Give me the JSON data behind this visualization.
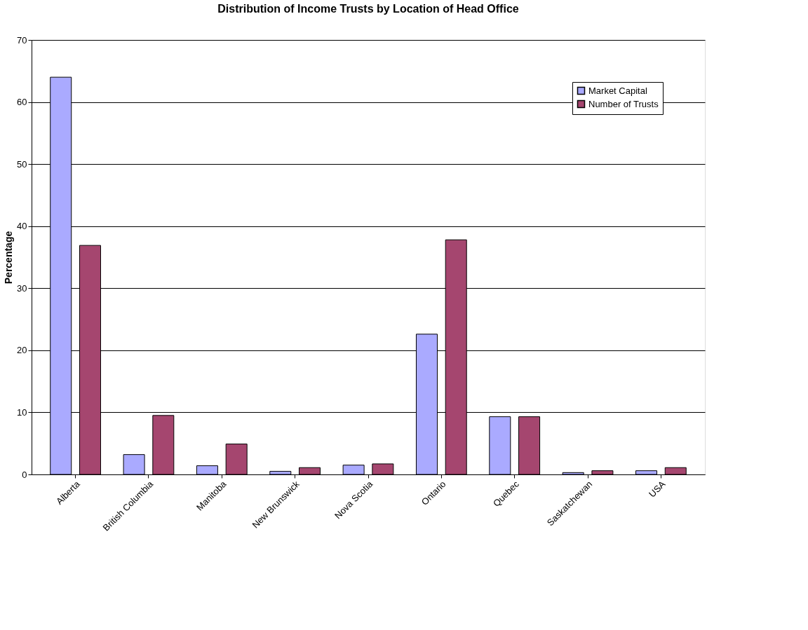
{
  "chart_data": {
    "type": "bar",
    "title": "Distribution of Income Trusts by Location of Head Office",
    "ylabel": "Percentage",
    "categories": [
      "Alberta",
      "British Columbia",
      "Manitoba",
      "New Brunswick",
      "Nova Scotia",
      "Ontario",
      "Quebec",
      "Saskatchewan",
      "USA"
    ],
    "series": [
      {
        "name": "Market Capital",
        "color": "#aaaaff",
        "values": [
          64,
          3.2,
          1.4,
          0.5,
          1.5,
          22.6,
          9.3,
          0.3,
          0.6
        ]
      },
      {
        "name": "Number of Trusts",
        "color": "#a5466f",
        "values": [
          36.9,
          9.5,
          4.9,
          1.1,
          1.7,
          37.8,
          9.3,
          0.6,
          1.1
        ]
      }
    ],
    "ylim": [
      0,
      70
    ],
    "yticks": [
      0,
      10,
      20,
      30,
      40,
      50,
      60,
      70
    ],
    "grid": "y",
    "legend": "top right"
  }
}
